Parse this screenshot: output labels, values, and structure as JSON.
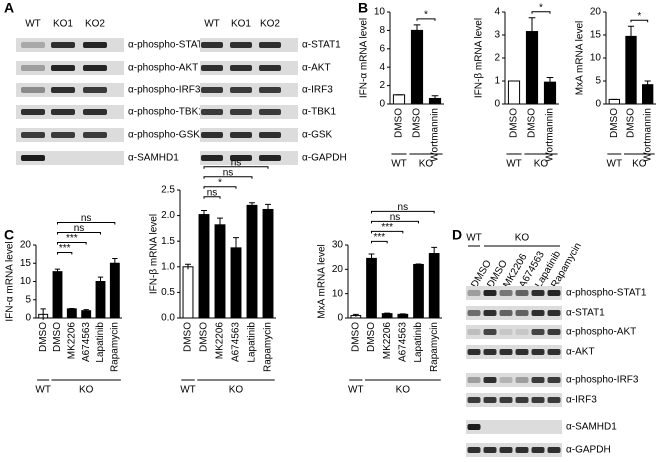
{
  "panel_labels": [
    "A",
    "B",
    "C",
    "D"
  ],
  "blots": [
    {
      "columns": [
        "WT",
        "KO1",
        "KO2"
      ],
      "rows": [
        "α-phospho-STAT1",
        "α-phospho-AKT",
        "α-phospho-IRF3",
        "α-phospho-TBK1",
        "α-phospho-GSK",
        "α-SAMHD1"
      ]
    },
    {
      "columns": [
        "WT",
        "KO1",
        "KO2"
      ],
      "rows": [
        "α-STAT1",
        "α-AKT",
        "α-IRF3",
        "α-TBK1",
        "α-GSK",
        "α-GAPDH"
      ]
    },
    {
      "group_labels": [
        "WT",
        "KO"
      ],
      "columns": [
        "DMSO",
        "DMSO",
        "MK2206",
        "A674563",
        "Lapatinib",
        "Rapamycin"
      ],
      "rows": [
        "α-phospho-STAT1",
        "α-STAT1",
        "α-phospho-AKT",
        "α-AKT",
        "α-phospho-IRF3",
        "α-IRF3",
        "α-SAMHD1",
        "α-GAPDH"
      ]
    }
  ],
  "chart_data": [
    {
      "type": "bar",
      "y_label": "IFN-α mRNA level",
      "categories": [
        "DMSO",
        "DMSO",
        "Wortmannin"
      ],
      "group_labels": [
        "WT",
        "KO"
      ],
      "values": [
        1,
        8,
        0.6
      ],
      "errors": [
        0,
        0.6,
        0.3
      ],
      "colors": [
        "#ffffff",
        "#000000",
        "#000000"
      ],
      "significance": [
        null,
        null,
        "*"
      ],
      "ylim": [
        0,
        10
      ],
      "yticks": [
        0,
        2,
        4,
        6,
        8,
        10
      ]
    },
    {
      "type": "bar",
      "y_label": "IFN-β mRNA level",
      "categories": [
        "DMSO",
        "DMSO",
        "Wortmannin"
      ],
      "group_labels": [
        "WT",
        "KO"
      ],
      "values": [
        1,
        3.15,
        0.95
      ],
      "errors": [
        0,
        0.6,
        0.2
      ],
      "colors": [
        "#ffffff",
        "#000000",
        "#000000"
      ],
      "significance": [
        null,
        null,
        "*"
      ],
      "ylim": [
        0,
        4
      ],
      "yticks": [
        0,
        1,
        2,
        3,
        4
      ]
    },
    {
      "type": "bar",
      "y_label": "MxA mRNA level",
      "categories": [
        "DMSO",
        "DMSO",
        "Wortmannin"
      ],
      "group_labels": [
        "WT",
        "KO"
      ],
      "values": [
        1,
        14.7,
        4.2
      ],
      "errors": [
        0,
        2.2,
        0.8
      ],
      "colors": [
        "#ffffff",
        "#000000",
        "#000000"
      ],
      "significance": [
        null,
        null,
        "*"
      ],
      "ylim": [
        0,
        20
      ],
      "yticks": [
        0,
        5,
        10,
        15,
        20
      ]
    },
    {
      "type": "bar",
      "y_label": "IFN-α mRNA level",
      "categories": [
        "DMSO",
        "DMSO",
        "MK2206",
        "A674563",
        "Lapatinib",
        "Rapamycin"
      ],
      "group_labels": [
        "WT",
        "KO"
      ],
      "values": [
        1,
        12.7,
        2.5,
        2,
        10,
        15
      ],
      "errors": [
        1.5,
        0.7,
        0.1,
        0.3,
        1.2,
        1.3
      ],
      "colors": [
        "#ffffff",
        "#000000",
        "#000000",
        "#000000",
        "#000000",
        "#000000"
      ],
      "significance": [
        null,
        null,
        "***",
        "***",
        "ns",
        "ns"
      ],
      "ylim": [
        0,
        20
      ],
      "yticks": [
        0,
        5,
        10,
        15,
        20
      ]
    },
    {
      "type": "bar",
      "y_label": "IFN-β mRNA level",
      "categories": [
        "DMSO",
        "DMSO",
        "MK2206",
        "A674563",
        "Lapatinib",
        "Rapamycin"
      ],
      "group_labels": [
        "WT",
        "KO"
      ],
      "values": [
        1,
        2.02,
        1.82,
        1.37,
        2.2,
        2.12
      ],
      "errors": [
        0.05,
        0.08,
        0.13,
        0.2,
        0.05,
        0.1
      ],
      "colors": [
        "#ffffff",
        "#000000",
        "#000000",
        "#000000",
        "#000000",
        "#000000"
      ],
      "significance": [
        null,
        null,
        "ns",
        "*",
        "ns",
        "ns"
      ],
      "ylim": [
        0,
        2.5
      ],
      "yticks": [
        {
          "value": 0,
          "label": "0.0"
        },
        0.5,
        {
          "value": 1,
          "label": "1.0"
        },
        1.5,
        {
          "value": 2,
          "label": "2.0"
        },
        2.5
      ]
    },
    {
      "type": "bar",
      "y_label": "MxA mRNA level",
      "categories": [
        "DMSO",
        "DMSO",
        "MK2206",
        "A674563",
        "Lapatinib",
        "Rapamycin"
      ],
      "group_labels": [
        "WT",
        "KO"
      ],
      "values": [
        1,
        24.5,
        1.8,
        1.5,
        22,
        26.5
      ],
      "errors": [
        0.5,
        1.8,
        0.2,
        0.2,
        0.2,
        2.5
      ],
      "colors": [
        "#ffffff",
        "#000000",
        "#000000",
        "#000000",
        "#000000",
        "#000000"
      ],
      "significance": [
        null,
        null,
        "***",
        "***",
        "ns",
        "ns"
      ],
      "ylim": [
        0,
        30
      ],
      "yticks": [
        0,
        10,
        20,
        30
      ]
    }
  ]
}
